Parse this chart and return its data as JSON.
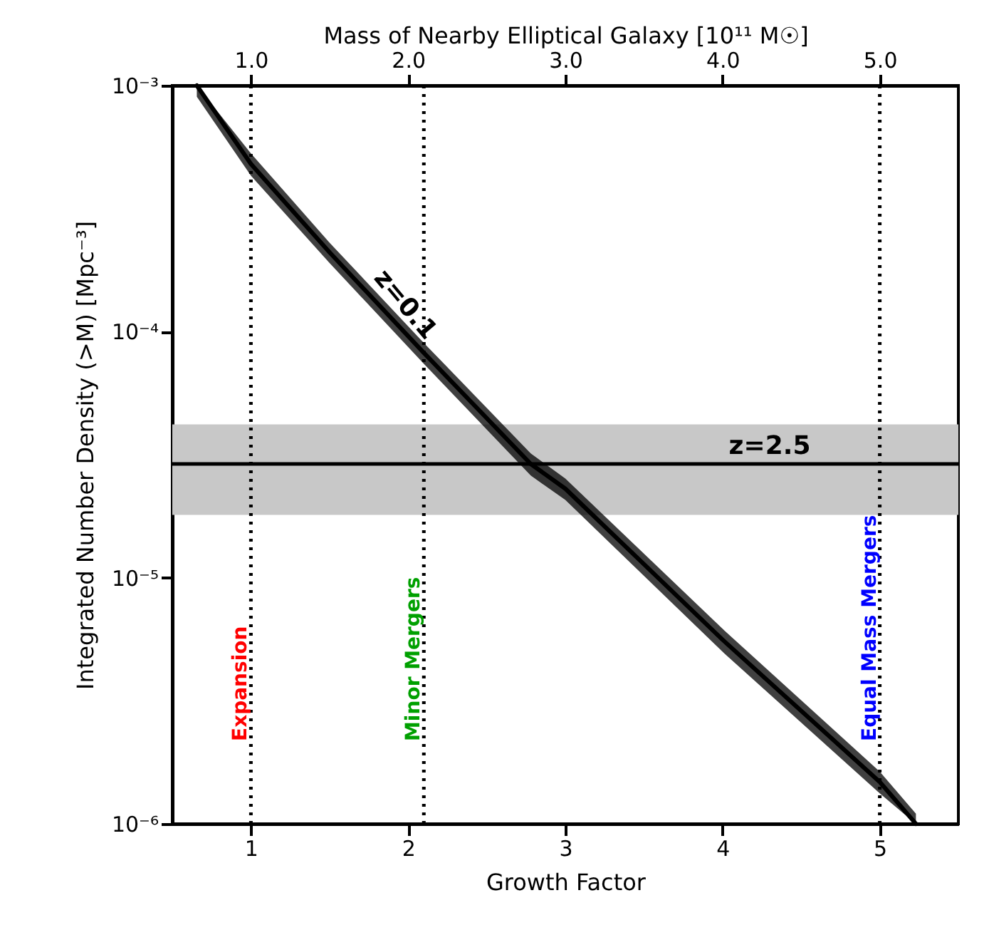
{
  "chart_data": {
    "type": "line",
    "xlabel": "Growth Factor",
    "ylabel": "Integrated Number Density (>M) [Mpc⁻³]",
    "x2label": "Mass of Nearby Elliptical Galaxy [10¹¹ M☉]",
    "xlim": [
      0.5,
      5.5
    ],
    "xticks": [
      1,
      2,
      3,
      4,
      5
    ],
    "x2lim": [
      0.5,
      5.5
    ],
    "x2ticks": [
      {
        "value": 1,
        "label": "1.0"
      },
      {
        "value": 2,
        "label": "2.0"
      },
      {
        "value": 3,
        "label": "3.0"
      },
      {
        "value": 4,
        "label": "4.0"
      },
      {
        "value": 5,
        "label": "5.0"
      }
    ],
    "ylim": [
      1e-06,
      0.001
    ],
    "yticks": [
      {
        "value": 1e-06,
        "label": "10⁻⁶"
      },
      {
        "value": 1e-05,
        "label": "10⁻⁵"
      },
      {
        "value": 0.0001,
        "label": "10⁻⁴"
      },
      {
        "value": 0.001,
        "label": "10⁻³"
      }
    ],
    "log": "y",
    "grid": false,
    "line_style": "solid",
    "marker": "none",
    "annotations": [
      {
        "text": "z=2.5",
        "y": 2.9e-05
      }
    ],
    "series": [
      {
        "name": "z=0.1",
        "color": "#000000",
        "x": [
          0.656,
          1,
          1.5,
          2.1,
          2.78,
          3,
          4,
          5,
          5.23
        ],
        "values": [
          0.001,
          0.00048,
          0.00021,
          8.2e-05,
          2.9e-05,
          2.3e-05,
          5.6e-06,
          1.48e-06,
          1e-06
        ],
        "lower": [
          0.0009,
          0.00043,
          0.00019,
          7.4e-05,
          2.6e-05,
          2.07e-05,
          5e-06,
          1.33e-06,
          1e-06
        ],
        "upper": [
          0.001,
          0.00053,
          0.00023,
          9e-05,
          3.2e-05,
          2.53e-05,
          6.2e-06,
          1.63e-06,
          1.1e-06
        ]
      }
    ],
    "bands": [
      {
        "axis": "y",
        "from": 1.8e-05,
        "to": 4.2e-05,
        "color": "#c8c8c8"
      }
    ],
    "ref_lines": [
      {
        "axis": "y",
        "value": 2.9e-05,
        "color": "#000000",
        "line_style": "solid"
      },
      {
        "axis": "x",
        "value": 1,
        "label": "Expansion",
        "color": "#000000",
        "line_style": "dotted"
      },
      {
        "axis": "x",
        "value": 2.1,
        "label": "Minor Mergers",
        "color": "#000000",
        "line_style": "dotted"
      },
      {
        "axis": "x",
        "value": 5,
        "label": "Equal Mass Mergers",
        "color": "#000000",
        "line_style": "dotted"
      }
    ]
  }
}
